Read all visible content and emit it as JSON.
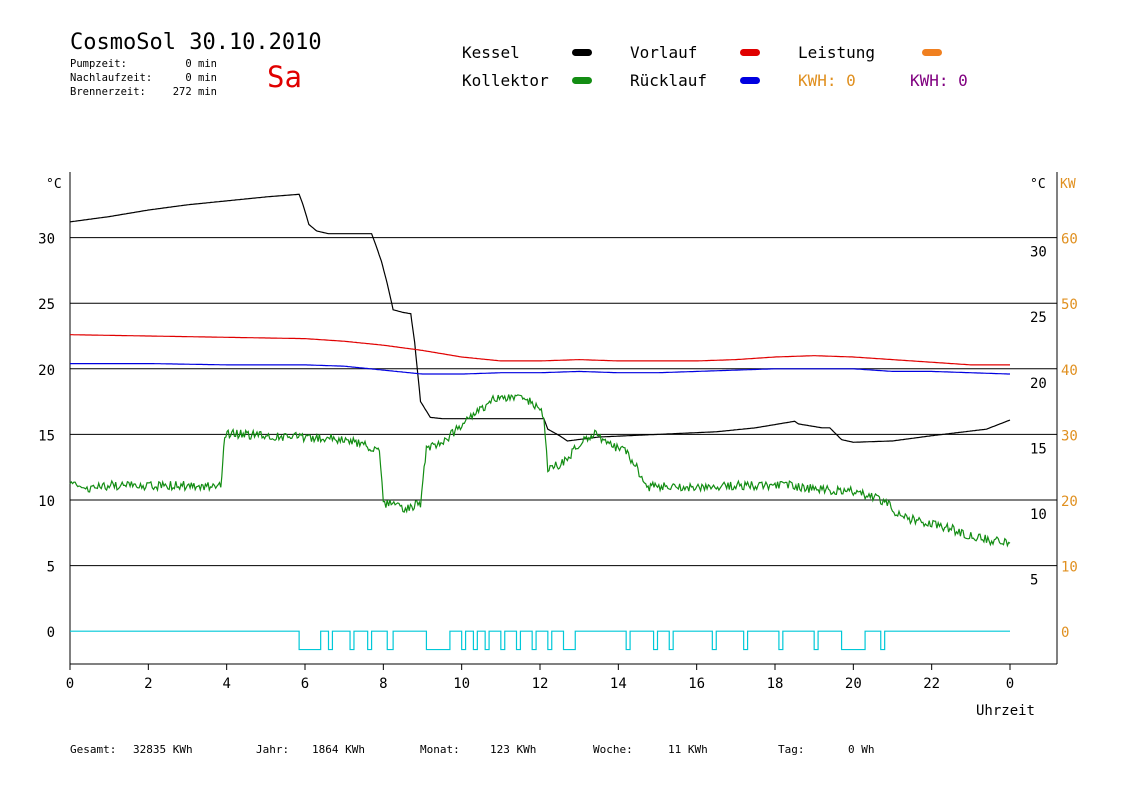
{
  "header": {
    "title": "CosmoSol 30.10.2010",
    "day": "Sa",
    "stats": [
      {
        "label": "Pumpzeit:",
        "value": "0 min"
      },
      {
        "label": "Nachlaufzeit:",
        "value": "0 min"
      },
      {
        "label": "Brennerzeit:",
        "value": "272 min"
      }
    ]
  },
  "legend": {
    "kessel": {
      "label": "Kessel",
      "color": "#000000"
    },
    "kollektor": {
      "label": "Kollektor",
      "color": "#138d13"
    },
    "vorlauf": {
      "label": "Vorlauf",
      "color": "#e00000"
    },
    "ruecklauf": {
      "label": "Rücklauf",
      "color": "#0000e0"
    },
    "leistung": {
      "label": "Leistung",
      "color": "#f08020"
    },
    "kwh1": {
      "text": "KWH: 0",
      "color": "#e09020"
    },
    "kwh2": {
      "text": "KWH: 0",
      "color": "#800080"
    }
  },
  "footer": [
    {
      "label": "Gesamt:",
      "value": "32835 KWh"
    },
    {
      "label": "Jahr:",
      "value": "1864 KWh"
    },
    {
      "label": "Monat:",
      "value": "123 KWh"
    },
    {
      "label": "Woche:",
      "value": "11 KWh"
    },
    {
      "label": "Tag:",
      "value": "0 Wh"
    }
  ],
  "chart_data": {
    "type": "line",
    "xlabel": "Uhrzeit",
    "ylabel_left": "°C",
    "ylabel_right": "°C",
    "ylabel_right2": "KW",
    "xlim": [
      0,
      24
    ],
    "ylim": [
      -2.5,
      35
    ],
    "ylim_kw": [
      -5,
      70
    ],
    "x_ticks": [
      "0",
      "2",
      "4",
      "6",
      "8",
      "10",
      "12",
      "14",
      "16",
      "18",
      "20",
      "22",
      "0"
    ],
    "y_ticks": [
      0,
      5,
      10,
      15,
      20,
      25,
      30
    ],
    "kw_ticks": [
      0,
      10,
      20,
      30,
      40,
      50,
      60
    ],
    "grid": "horizontal",
    "series": [
      {
        "name": "Kessel",
        "color": "#000000",
        "x": [
          0,
          1,
          2,
          3,
          4,
          5,
          5.85,
          5.95,
          6.1,
          6.3,
          6.6,
          7.7,
          7.8,
          7.95,
          8.1,
          8.25,
          8.5,
          8.7,
          8.8,
          8.95,
          9.2,
          9.5,
          12.1,
          12.2,
          12.5,
          12.7,
          13.5,
          15,
          16.5,
          17.5,
          18.5,
          18.6,
          19.2,
          19.4,
          19.7,
          20,
          21,
          22,
          23.4,
          24
        ],
        "y": [
          31.2,
          31.6,
          32.1,
          32.5,
          32.8,
          33.1,
          33.3,
          32.5,
          31,
          30.5,
          30.3,
          30.3,
          29.5,
          28.2,
          26.5,
          24.5,
          24.3,
          24.2,
          22,
          17.5,
          16.3,
          16.2,
          16.2,
          15.4,
          14.9,
          14.5,
          14.8,
          15,
          15.2,
          15.5,
          16,
          15.8,
          15.5,
          15.5,
          14.6,
          14.4,
          14.5,
          14.9,
          15.4,
          16.1
        ]
      },
      {
        "name": "Vorlauf",
        "color": "#e00000",
        "x": [
          0,
          2,
          4,
          6,
          7,
          8,
          9,
          10,
          11,
          12,
          13,
          14,
          15,
          16,
          17,
          18,
          19,
          20,
          21,
          22,
          23,
          24
        ],
        "y": [
          22.6,
          22.5,
          22.4,
          22.3,
          22.1,
          21.8,
          21.4,
          20.9,
          20.6,
          20.6,
          20.7,
          20.6,
          20.6,
          20.6,
          20.7,
          20.9,
          21,
          20.9,
          20.7,
          20.5,
          20.3,
          20.3
        ]
      },
      {
        "name": "Rücklauf",
        "color": "#0000e0",
        "x": [
          0,
          2,
          4,
          6,
          7,
          8,
          9,
          10,
          11,
          12,
          13,
          14,
          15,
          16,
          17,
          18,
          19,
          20,
          21,
          22,
          23,
          24
        ],
        "y": [
          20.4,
          20.4,
          20.3,
          20.3,
          20.2,
          19.9,
          19.6,
          19.6,
          19.7,
          19.7,
          19.8,
          19.7,
          19.7,
          19.8,
          19.9,
          20,
          20,
          20,
          19.8,
          19.8,
          19.7,
          19.6
        ]
      },
      {
        "name": "Kollektor",
        "color": "#138d13",
        "x": [
          0,
          0.5,
          1,
          2,
          3,
          3.85,
          3.95,
          4.1,
          5,
          6,
          7,
          7.5,
          7.9,
          8,
          8.5,
          8.95,
          9.1,
          9.5,
          10,
          10.5,
          10.8,
          11,
          11.5,
          11.8,
          12.1,
          12.2,
          12.4,
          12.7,
          13,
          13.4,
          13.7,
          14.2,
          14.5,
          14.7,
          15,
          16,
          17,
          18,
          18.5,
          19,
          19.5,
          20,
          20.3,
          20.8,
          21.2,
          22,
          22.5,
          23,
          23.5,
          24
        ],
        "y": [
          11.2,
          10.8,
          11.1,
          11.1,
          11.1,
          11.1,
          15,
          15.1,
          14.9,
          14.8,
          14.6,
          14.2,
          13.6,
          9.8,
          9.4,
          9.7,
          13.9,
          14.4,
          15.7,
          17,
          17.6,
          17.9,
          17.7,
          17.4,
          16.5,
          12.5,
          12.6,
          13.1,
          14.3,
          15.1,
          14.4,
          13.6,
          12.3,
          11,
          11,
          11,
          11.1,
          11.1,
          11.1,
          10.8,
          10.7,
          10.7,
          10.4,
          9.9,
          8.7,
          8.2,
          7.8,
          7.3,
          6.9,
          6.7
        ]
      },
      {
        "name": "Pumpe",
        "color": "#00c8d8",
        "on": [
          [
            5.85,
            6.4
          ],
          [
            6.6,
            6.7
          ],
          [
            7.15,
            7.25
          ],
          [
            7.6,
            7.7
          ],
          [
            8.1,
            8.25
          ],
          [
            9.1,
            9.7
          ],
          [
            10.0,
            10.1
          ],
          [
            10.3,
            10.4
          ],
          [
            10.6,
            10.7
          ],
          [
            11,
            11.1
          ],
          [
            11.4,
            11.5
          ],
          [
            11.8,
            11.9
          ],
          [
            12.2,
            12.3
          ],
          [
            12.6,
            12.9
          ],
          [
            14.2,
            14.3
          ],
          [
            14.9,
            15
          ],
          [
            15.3,
            15.4
          ],
          [
            16.4,
            16.5
          ],
          [
            17.2,
            17.3
          ],
          [
            18.1,
            18.2
          ],
          [
            19.0,
            19.1
          ],
          [
            19.7,
            20.3
          ],
          [
            20.7,
            20.8
          ]
        ]
      }
    ]
  }
}
